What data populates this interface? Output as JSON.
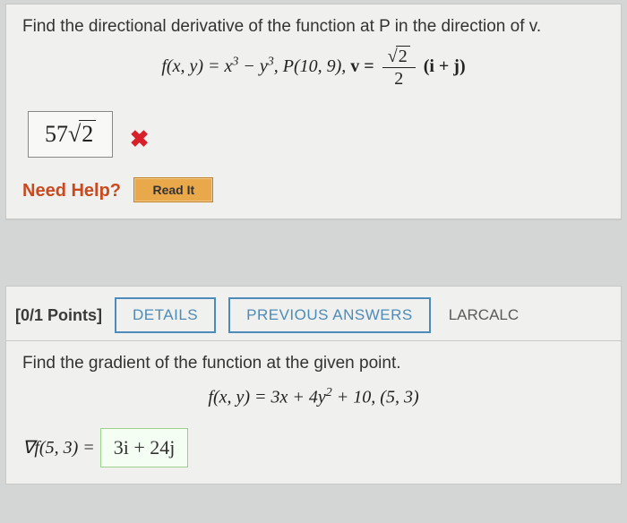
{
  "q1": {
    "prompt": "Find the directional derivative of the function at P in the direction of v.",
    "fn_lhs": "f(x, y) = x",
    "fn_exp1": "3",
    "fn_mid": " − y",
    "fn_exp2": "3",
    "point_label": ",   P(10, 9), ",
    "v_eq": "v = ",
    "frac_num_sqrt": "2",
    "frac_den": "2",
    "tail": " (i + j)",
    "answer_pre": "57",
    "answer_sqrt": "2",
    "wrong_mark": "✖",
    "need_help": "Need Help?",
    "read_it": "Read It"
  },
  "q2": {
    "points": "[0/1 Points]",
    "details": "DETAILS",
    "previous": "PREVIOUS ANSWERS",
    "source": "LARCALC",
    "prompt": "Find the gradient of the function at the given point.",
    "fn": "f(x, y) = 3x + 4y",
    "fn_exp": "2",
    "fn_tail": " + 10,    (5, 3)",
    "grad_lhs": "∇f(5, 3) = ",
    "grad_answer": "3i + 24j"
  }
}
